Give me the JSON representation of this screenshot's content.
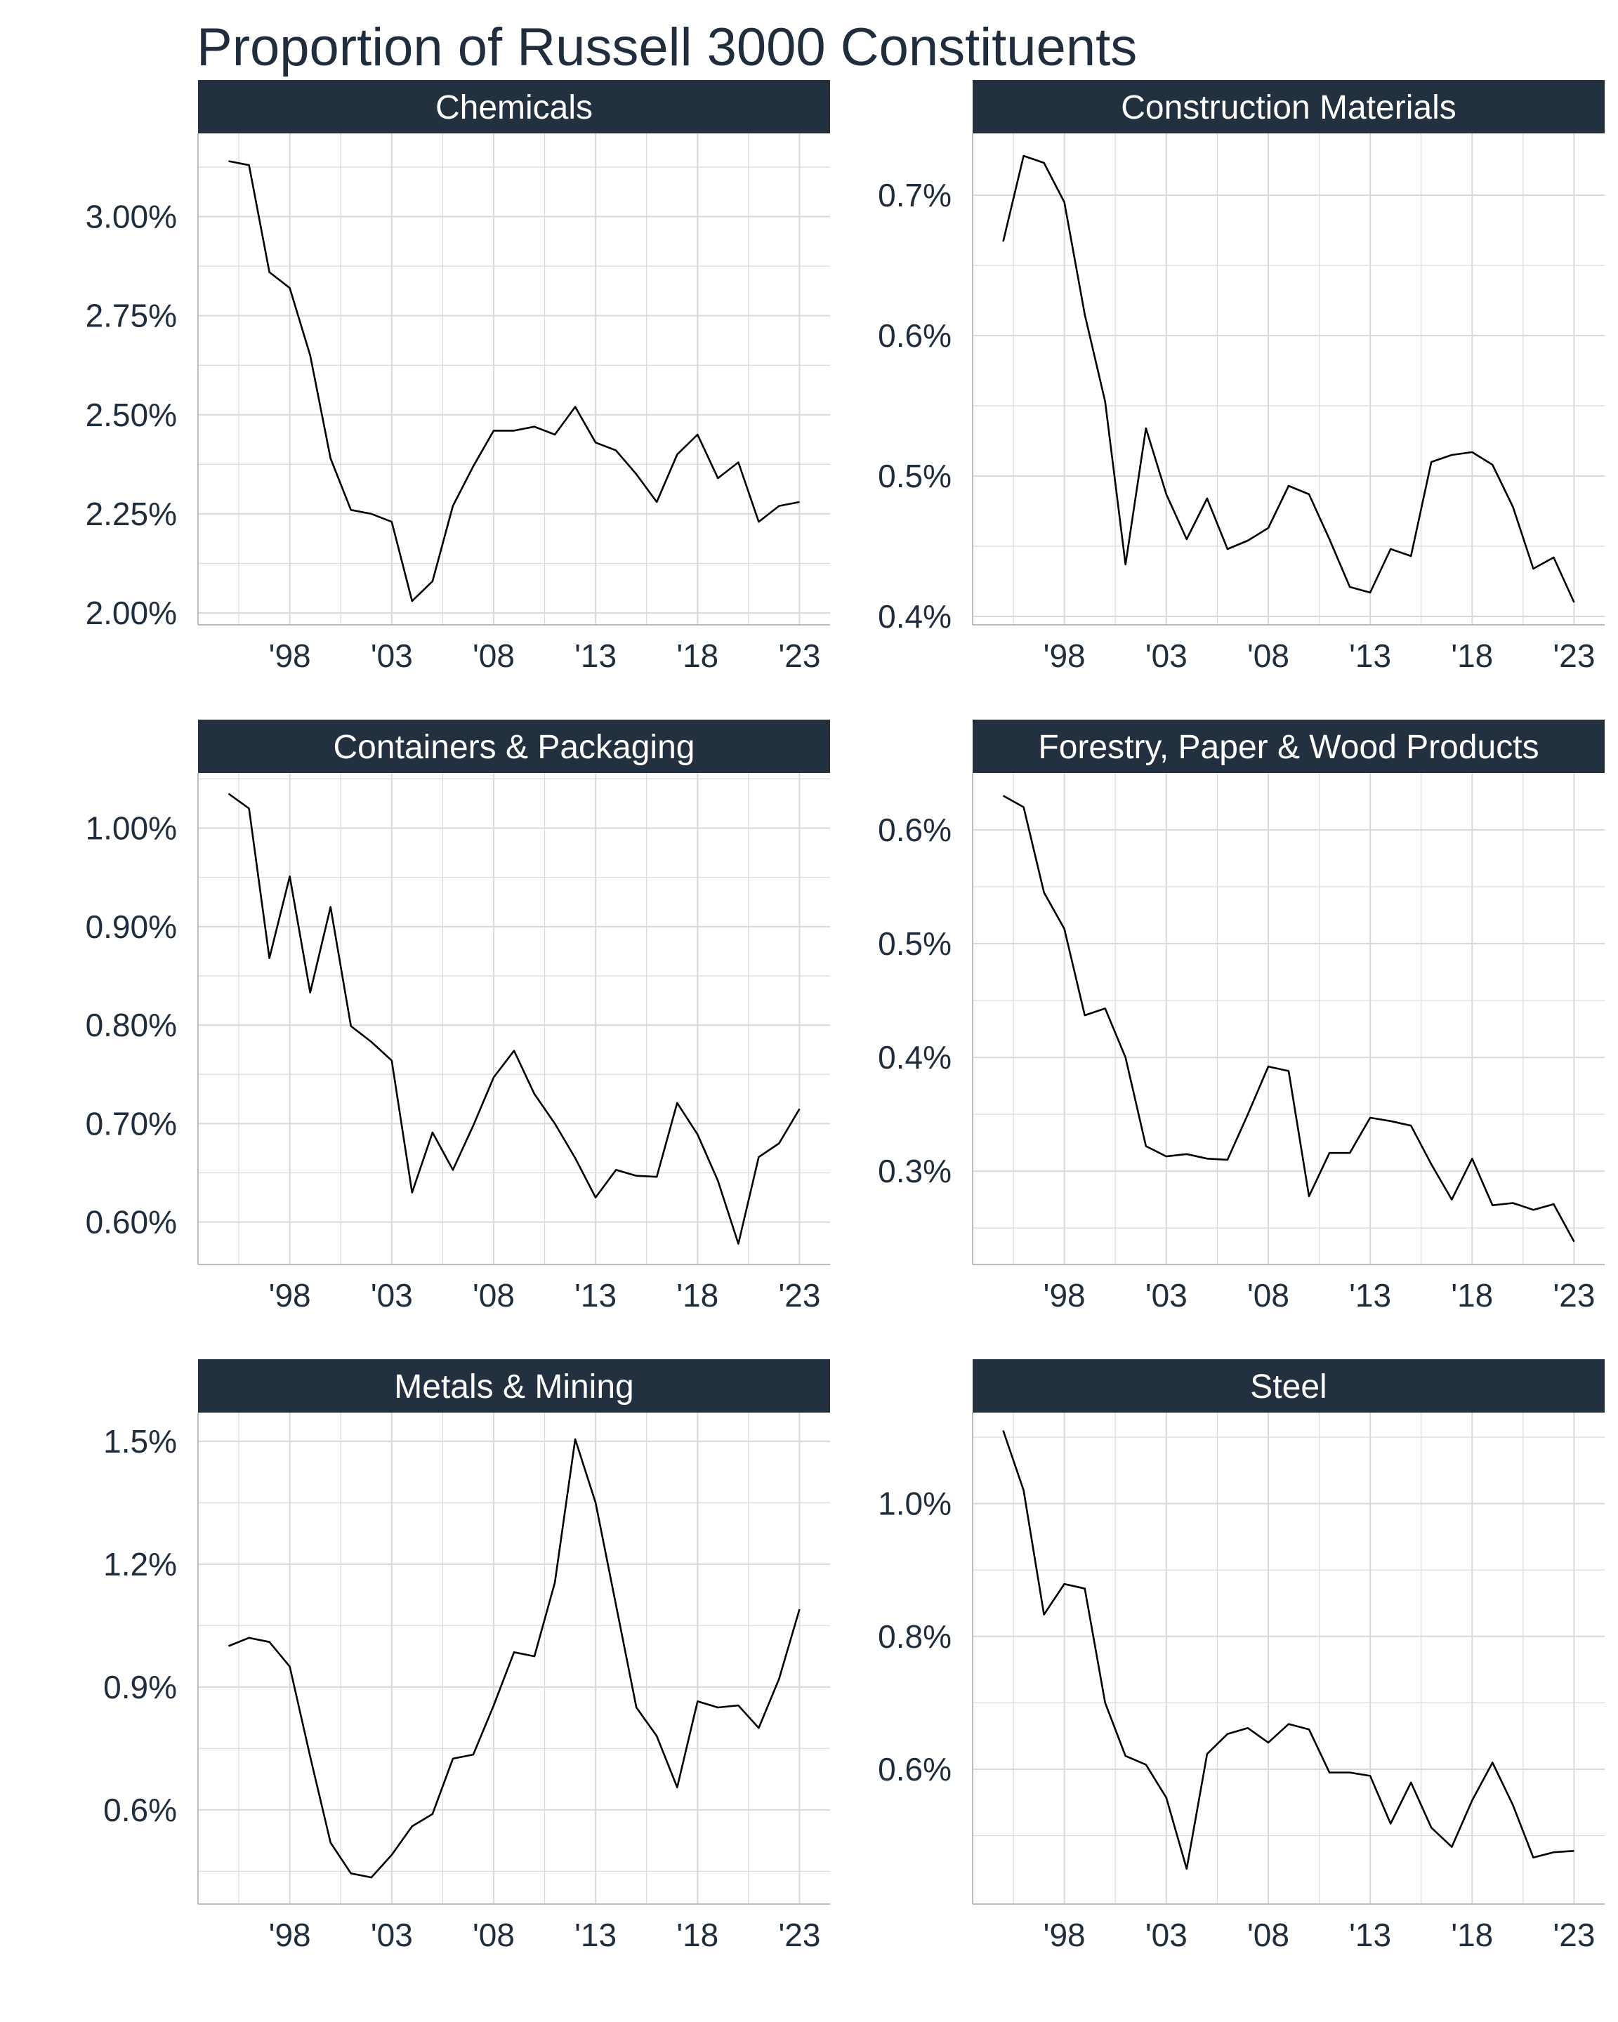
{
  "title": "Proportion of Russell 3000 Constituents",
  "colors": {
    "strip_bg": "#223040",
    "strip_text": "#ffffff",
    "grid": "#d9d9d9",
    "axis_text": "#1f2d3d",
    "line": "#000000"
  },
  "chart_data": [
    {
      "type": "line",
      "title": "Chemicals",
      "x": [
        1995,
        1996,
        1997,
        1998,
        1999,
        2000,
        2001,
        2002,
        2003,
        2004,
        2005,
        2006,
        2007,
        2008,
        2009,
        2010,
        2011,
        2012,
        2013,
        2014,
        2015,
        2016,
        2017,
        2018,
        2019,
        2020,
        2021,
        2022,
        2023
      ],
      "values": [
        3.14,
        3.13,
        2.86,
        2.82,
        2.65,
        2.39,
        2.26,
        2.25,
        2.23,
        2.03,
        2.08,
        2.27,
        2.37,
        2.46,
        2.46,
        2.47,
        2.45,
        2.52,
        2.43,
        2.41,
        2.35,
        2.28,
        2.4,
        2.45,
        2.34,
        2.38,
        2.23,
        2.27,
        2.28
      ],
      "xlim": [
        1993.5,
        2024.5
      ],
      "ylim": [
        1.97,
        3.21
      ],
      "y_ticks": [
        2.0,
        2.25,
        2.5,
        2.75,
        3.0
      ],
      "y_tick_labels": [
        "2.00%",
        "2.25%",
        "2.50%",
        "2.75%",
        "3.00%"
      ],
      "x_ticks": [
        1998,
        2003,
        2008,
        2013,
        2018,
        2023
      ],
      "x_tick_labels": [
        "'98",
        "'03",
        "'08",
        "'13",
        "'18",
        "'23"
      ]
    },
    {
      "type": "line",
      "title": "Construction Materials",
      "x": [
        1995,
        1996,
        1997,
        1998,
        1999,
        2000,
        2001,
        2002,
        2003,
        2004,
        2005,
        2006,
        2007,
        2008,
        2009,
        2010,
        2011,
        2012,
        2013,
        2014,
        2015,
        2016,
        2017,
        2018,
        2019,
        2020,
        2021,
        2022,
        2023
      ],
      "values": [
        0.667,
        0.728,
        0.723,
        0.695,
        0.615,
        0.553,
        0.437,
        0.534,
        0.487,
        0.455,
        0.484,
        0.448,
        0.454,
        0.463,
        0.493,
        0.487,
        0.455,
        0.421,
        0.417,
        0.448,
        0.443,
        0.51,
        0.515,
        0.517,
        0.508,
        0.478,
        0.434,
        0.442,
        0.41
      ],
      "xlim": [
        1993.5,
        2024.5
      ],
      "ylim": [
        0.394,
        0.744
      ],
      "y_ticks": [
        0.4,
        0.5,
        0.6,
        0.7
      ],
      "y_tick_labels": [
        "0.4%",
        "0.5%",
        "0.6%",
        "0.7%"
      ],
      "x_ticks": [
        1998,
        2003,
        2008,
        2013,
        2018,
        2023
      ],
      "x_tick_labels": [
        "'98",
        "'03",
        "'08",
        "'13",
        "'18",
        "'23"
      ]
    },
    {
      "type": "line",
      "title": "Containers & Packaging",
      "x": [
        1995,
        1996,
        1997,
        1998,
        1999,
        2000,
        2001,
        2002,
        2003,
        2004,
        2005,
        2006,
        2007,
        2008,
        2009,
        2010,
        2011,
        2012,
        2013,
        2014,
        2015,
        2016,
        2017,
        2018,
        2019,
        2020,
        2021,
        2022,
        2023
      ],
      "values": [
        1.035,
        1.02,
        0.868,
        0.951,
        0.833,
        0.92,
        0.799,
        0.783,
        0.764,
        0.63,
        0.691,
        0.653,
        0.698,
        0.747,
        0.774,
        0.73,
        0.7,
        0.665,
        0.625,
        0.653,
        0.647,
        0.646,
        0.721,
        0.689,
        0.642,
        0.578,
        0.666,
        0.68,
        0.715
      ],
      "xlim": [
        1993.5,
        2024.5
      ],
      "ylim": [
        0.557,
        1.056
      ],
      "y_ticks": [
        0.6,
        0.7,
        0.8,
        0.9,
        1.0
      ],
      "y_tick_labels": [
        "0.60%",
        "0.70%",
        "0.80%",
        "0.90%",
        "1.00%"
      ],
      "x_ticks": [
        1998,
        2003,
        2008,
        2013,
        2018,
        2023
      ],
      "x_tick_labels": [
        "'98",
        "'03",
        "'08",
        "'13",
        "'18",
        "'23"
      ]
    },
    {
      "type": "line",
      "title": "Forestry, Paper & Wood Products",
      "x": [
        1995,
        1996,
        1997,
        1998,
        1999,
        2000,
        2001,
        2002,
        2003,
        2004,
        2005,
        2006,
        2007,
        2008,
        2009,
        2010,
        2011,
        2012,
        2013,
        2014,
        2015,
        2016,
        2017,
        2018,
        2019,
        2020,
        2021,
        2022,
        2023
      ],
      "values": [
        0.63,
        0.62,
        0.545,
        0.513,
        0.437,
        0.443,
        0.4,
        0.322,
        0.313,
        0.315,
        0.311,
        0.31,
        0.35,
        0.392,
        0.388,
        0.278,
        0.316,
        0.316,
        0.347,
        0.344,
        0.34,
        0.306,
        0.275,
        0.311,
        0.27,
        0.272,
        0.266,
        0.271,
        0.238
      ],
      "xlim": [
        1993.5,
        2024.5
      ],
      "ylim": [
        0.218,
        0.65
      ],
      "y_ticks": [
        0.3,
        0.4,
        0.5,
        0.6
      ],
      "y_tick_labels": [
        "0.3%",
        "0.4%",
        "0.5%",
        "0.6%"
      ],
      "x_ticks": [
        1998,
        2003,
        2008,
        2013,
        2018,
        2023
      ],
      "x_tick_labels": [
        "'98",
        "'03",
        "'08",
        "'13",
        "'18",
        "'23"
      ]
    },
    {
      "type": "line",
      "title": "Metals & Mining",
      "x": [
        1995,
        1996,
        1997,
        1998,
        1999,
        2000,
        2001,
        2002,
        2003,
        2004,
        2005,
        2006,
        2007,
        2008,
        2009,
        2010,
        2011,
        2012,
        2013,
        2014,
        2015,
        2016,
        2017,
        2018,
        2019,
        2020,
        2021,
        2022,
        2023
      ],
      "values": [
        1.0,
        1.02,
        1.01,
        0.95,
        0.73,
        0.52,
        0.445,
        0.435,
        0.49,
        0.56,
        0.59,
        0.725,
        0.735,
        0.855,
        0.985,
        0.975,
        1.155,
        1.505,
        1.35,
        1.1,
        0.85,
        0.78,
        0.655,
        0.865,
        0.85,
        0.855,
        0.8,
        0.92,
        1.09
      ],
      "xlim": [
        1993.5,
        2024.5
      ],
      "ylim": [
        0.37,
        1.57
      ],
      "y_ticks": [
        0.6,
        0.9,
        1.2,
        1.5
      ],
      "y_tick_labels": [
        "0.6%",
        "0.9%",
        "1.2%",
        "1.5%"
      ],
      "x_ticks": [
        1998,
        2003,
        2008,
        2013,
        2018,
        2023
      ],
      "x_tick_labels": [
        "'98",
        "'03",
        "'08",
        "'13",
        "'18",
        "'23"
      ]
    },
    {
      "type": "line",
      "title": "Steel",
      "x": [
        1995,
        1996,
        1997,
        1998,
        1999,
        2000,
        2001,
        2002,
        2003,
        2004,
        2005,
        2006,
        2007,
        2008,
        2009,
        2010,
        2011,
        2012,
        2013,
        2014,
        2015,
        2016,
        2017,
        2018,
        2019,
        2020,
        2021,
        2022,
        2023
      ],
      "values": [
        1.11,
        1.02,
        0.833,
        0.879,
        0.872,
        0.7,
        0.62,
        0.607,
        0.557,
        0.45,
        0.623,
        0.653,
        0.662,
        0.64,
        0.668,
        0.66,
        0.595,
        0.595,
        0.59,
        0.518,
        0.58,
        0.512,
        0.483,
        0.553,
        0.61,
        0.546,
        0.467,
        0.475,
        0.477
      ],
      "xlim": [
        1993.5,
        2024.5
      ],
      "ylim": [
        0.397,
        1.137
      ],
      "y_ticks": [
        0.6,
        0.8,
        1.0
      ],
      "y_tick_labels": [
        "0.6%",
        "0.8%",
        "1.0%"
      ],
      "x_ticks": [
        1998,
        2003,
        2008,
        2013,
        2018,
        2023
      ],
      "x_tick_labels": [
        "'98",
        "'03",
        "'08",
        "'13",
        "'18",
        "'23"
      ]
    }
  ]
}
